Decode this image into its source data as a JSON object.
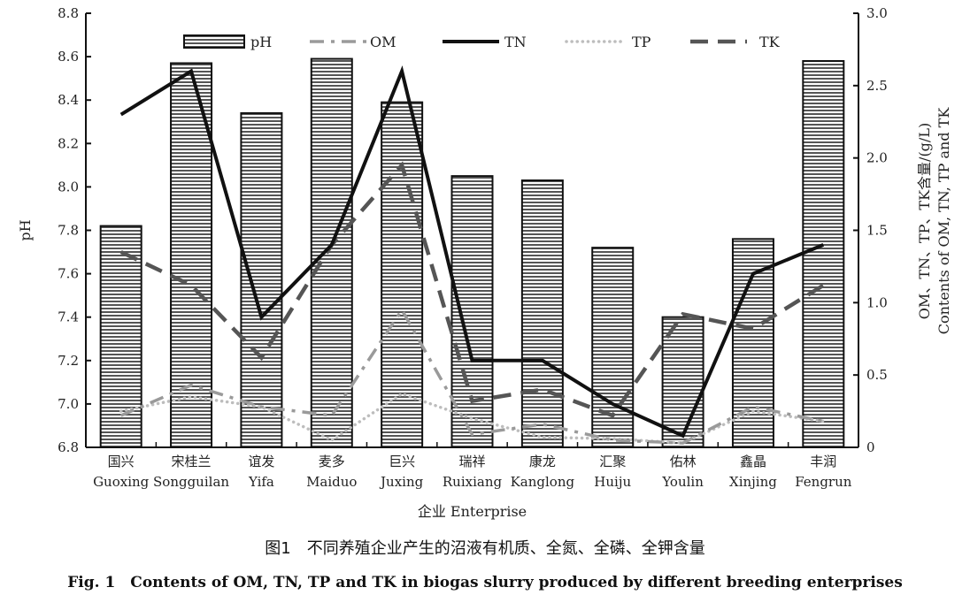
{
  "chart_data": {
    "type": "bar",
    "categories": [
      {
        "cn": "国兴",
        "en": "Guoxing"
      },
      {
        "cn": "宋桂兰",
        "en": "Songguilan"
      },
      {
        "cn": "谊发",
        "en": "Yifa"
      },
      {
        "cn": "麦多",
        "en": "Maiduo"
      },
      {
        "cn": "巨兴",
        "en": "Juxing"
      },
      {
        "cn": "瑞祥",
        "en": "Ruixiang"
      },
      {
        "cn": "康龙",
        "en": "Kanglong"
      },
      {
        "cn": "汇聚",
        "en": "Huiju"
      },
      {
        "cn": "佑林",
        "en": "Youlin"
      },
      {
        "cn": "鑫晶",
        "en": "Xinjing"
      },
      {
        "cn": "丰润",
        "en": "Fengrun"
      }
    ],
    "series": [
      {
        "name": "pH",
        "kind": "bar",
        "axis": "left",
        "values": [
          7.82,
          8.57,
          8.34,
          8.59,
          8.39,
          8.05,
          8.03,
          7.72,
          7.4,
          7.76,
          8.58
        ]
      },
      {
        "name": "OM",
        "kind": "line",
        "style": "dashdot",
        "axis": "right",
        "values": [
          0.22,
          0.43,
          0.28,
          0.22,
          0.95,
          0.09,
          0.16,
          0.05,
          0.03,
          0.28,
          0.18
        ]
      },
      {
        "name": "TN",
        "kind": "line",
        "style": "solid",
        "axis": "right",
        "values": [
          2.3,
          2.6,
          0.9,
          1.4,
          2.6,
          0.6,
          0.6,
          0.3,
          0.08,
          1.2,
          1.4
        ]
      },
      {
        "name": "TP",
        "kind": "line",
        "style": "dotted",
        "axis": "right",
        "values": [
          0.25,
          0.35,
          0.28,
          0.05,
          0.37,
          0.2,
          0.07,
          0.06,
          0.03,
          0.25,
          0.18
        ]
      },
      {
        "name": "TK",
        "kind": "line",
        "style": "dashed",
        "axis": "right",
        "values": [
          1.35,
          1.12,
          0.62,
          1.4,
          1.95,
          0.32,
          0.4,
          0.22,
          0.92,
          0.82,
          1.12
        ]
      }
    ],
    "yleft": {
      "label": "pH",
      "lim": [
        6.8,
        8.8
      ],
      "ticks": [
        "6.8",
        "7.0",
        "7.2",
        "7.4",
        "7.6",
        "7.8",
        "8.0",
        "8.2",
        "8.4",
        "8.6",
        "8.8"
      ]
    },
    "yright": {
      "label_cn": "OM、TN、TP、TK含量/(g/L)",
      "label_en": "Contents of OM, TN, TP and TK",
      "lim": [
        0,
        3.0
      ],
      "ticks": [
        "0",
        "0.5",
        "1.0",
        "1.5",
        "2.0",
        "2.5",
        "3.0"
      ]
    },
    "xlabel": "企业 Enterprise",
    "legend": "top"
  },
  "captions": {
    "cn": "图1　不同养殖企业产生的沼液有机质、全氮、全磷、全钾含量",
    "en": "Fig. 1　Contents of OM, TN, TP and TK in biogas slurry produced by different breeding enterprises"
  }
}
